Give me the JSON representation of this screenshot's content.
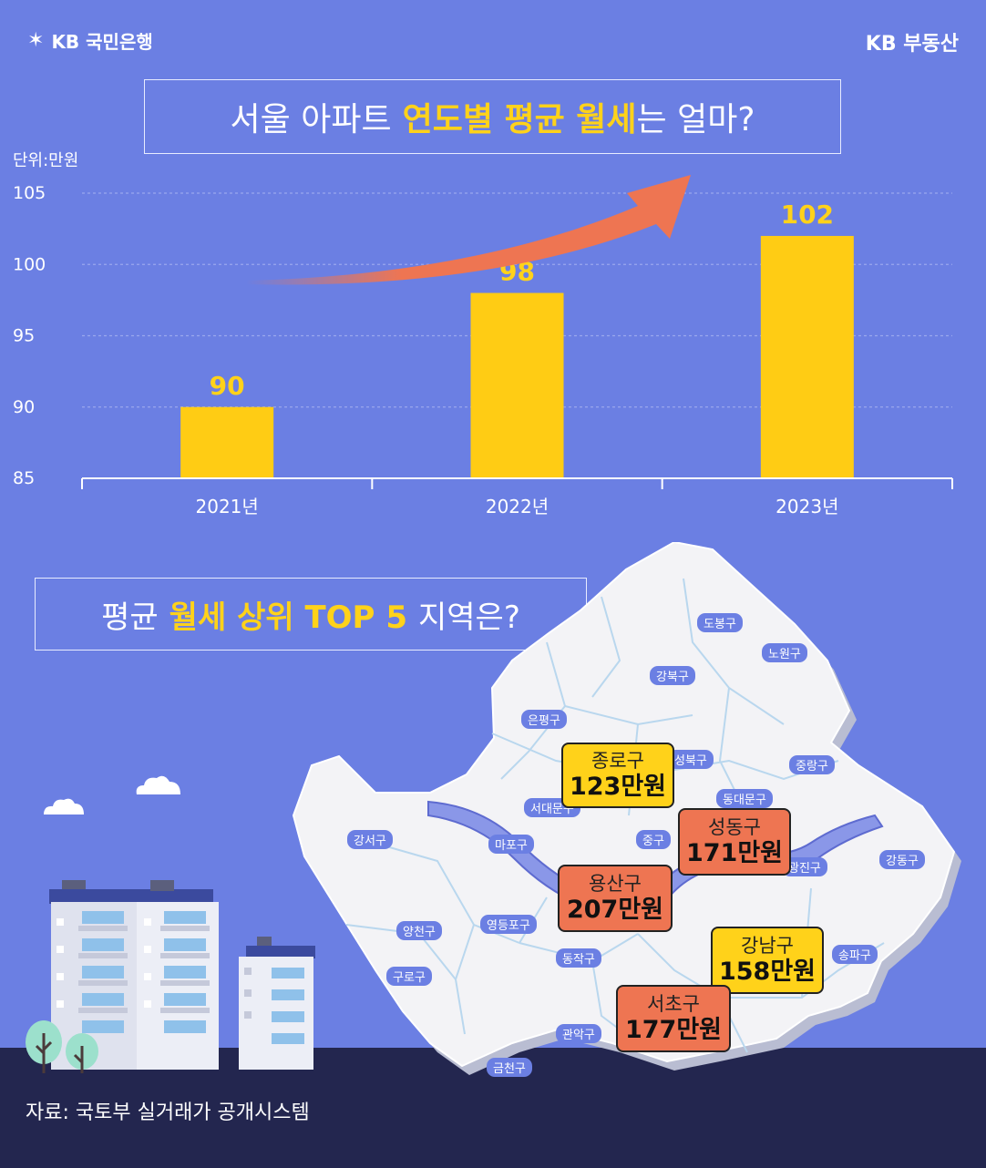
{
  "brand": {
    "bank": "KB 국민은행",
    "realty": "KB 부동산"
  },
  "chart_title": {
    "pre": "서울 아파트",
    "highlight": "연도별 평균 월세",
    "post": "는 얼마?"
  },
  "unit_label": "단위:만원",
  "chart_data": {
    "type": "bar",
    "categories": [
      "2021년",
      "2022년",
      "2023년"
    ],
    "values": [
      90,
      98,
      102
    ],
    "data_labels": [
      "90",
      "98",
      "102"
    ],
    "title": "서울 아파트 연도별 평균 월세는 얼마?",
    "ylabel": "단위:만원",
    "ylim": [
      85,
      105
    ],
    "yticks": [
      85,
      90,
      95,
      100,
      105
    ],
    "grid": true,
    "bar_color": "#ffcc14",
    "trend_arrow_color": "#ee7552"
  },
  "map_title": {
    "pre": "평균",
    "highlight": "월세 상위 TOP 5",
    "post": "지역은?"
  },
  "top5": [
    {
      "name": "종로구",
      "value": "123만원",
      "color": "yellow"
    },
    {
      "name": "성동구",
      "value": "171만원",
      "color": "orange"
    },
    {
      "name": "용산구",
      "value": "207만원",
      "color": "orange"
    },
    {
      "name": "강남구",
      "value": "158만원",
      "color": "yellow"
    },
    {
      "name": "서초구",
      "value": "177만원",
      "color": "orange"
    }
  ],
  "districts": [
    "도봉구",
    "노원구",
    "강북구",
    "은평구",
    "성북구",
    "중랑구",
    "서대문구",
    "동대문구",
    "마포구",
    "중구",
    "광진구",
    "강서구",
    "강동구",
    "양천구",
    "영등포구",
    "송파구",
    "동작구",
    "구로구",
    "관악구",
    "금천구"
  ],
  "source": "자료: 국토부 실거래가 공개시스템",
  "colors": {
    "background": "#6b7fe3",
    "accent": "#ffd21a",
    "orange": "#ee7552",
    "ground": "#23264f"
  }
}
